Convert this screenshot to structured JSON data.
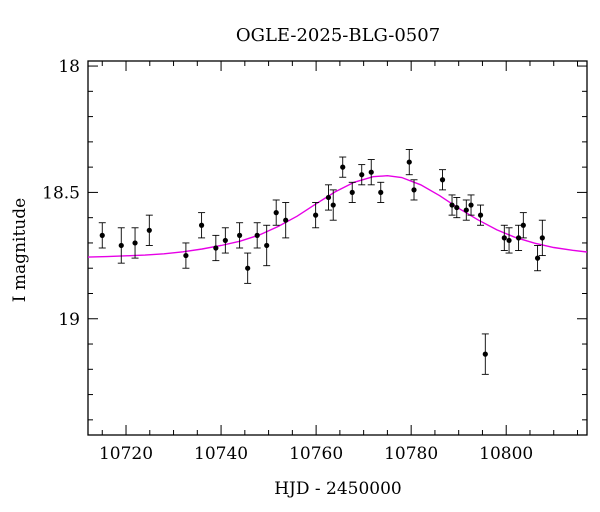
{
  "chart_data": {
    "type": "scatter",
    "title": "OGLE-2025-BLG-0507",
    "xlabel": "HJD - 2450000",
    "ylabel": "I magnitude",
    "xlim": [
      10712,
      10817
    ],
    "ylim": [
      19.46,
      17.98
    ],
    "y_inverted": true,
    "x_ticks": [
      10720,
      10740,
      10760,
      10780,
      10800
    ],
    "y_ticks": [
      18,
      18.5,
      19
    ],
    "y_tick_labels": [
      "18",
      "18.5",
      "19"
    ],
    "grid": false,
    "colors": {
      "points": "#000000",
      "model": "#e600e6",
      "axes": "#000000"
    },
    "series": [
      {
        "points": [
          {
            "x": 10715.0,
            "y": 18.67,
            "err": 0.05
          },
          {
            "x": 10719.0,
            "y": 18.71,
            "err": 0.07
          },
          {
            "x": 10721.9,
            "y": 18.7,
            "err": 0.06
          },
          {
            "x": 10724.9,
            "y": 18.65,
            "err": 0.06
          },
          {
            "x": 10732.6,
            "y": 18.75,
            "err": 0.05
          },
          {
            "x": 10735.9,
            "y": 18.63,
            "err": 0.05
          },
          {
            "x": 10738.9,
            "y": 18.72,
            "err": 0.05
          },
          {
            "x": 10740.9,
            "y": 18.69,
            "err": 0.05
          },
          {
            "x": 10743.9,
            "y": 18.67,
            "err": 0.05
          },
          {
            "x": 10745.6,
            "y": 18.8,
            "err": 0.06
          },
          {
            "x": 10747.6,
            "y": 18.67,
            "err": 0.05
          },
          {
            "x": 10749.6,
            "y": 18.71,
            "err": 0.08
          },
          {
            "x": 10751.6,
            "y": 18.58,
            "err": 0.05
          },
          {
            "x": 10753.6,
            "y": 18.61,
            "err": 0.07
          },
          {
            "x": 10759.9,
            "y": 18.59,
            "err": 0.05
          },
          {
            "x": 10762.6,
            "y": 18.52,
            "err": 0.05
          },
          {
            "x": 10763.6,
            "y": 18.55,
            "err": 0.06
          },
          {
            "x": 10765.6,
            "y": 18.4,
            "err": 0.04
          },
          {
            "x": 10767.6,
            "y": 18.5,
            "err": 0.04
          },
          {
            "x": 10769.6,
            "y": 18.43,
            "err": 0.04
          },
          {
            "x": 10771.6,
            "y": 18.42,
            "err": 0.05
          },
          {
            "x": 10773.6,
            "y": 18.5,
            "err": 0.04
          },
          {
            "x": 10779.6,
            "y": 18.38,
            "err": 0.05
          },
          {
            "x": 10780.6,
            "y": 18.49,
            "err": 0.04
          },
          {
            "x": 10786.6,
            "y": 18.45,
            "err": 0.04
          },
          {
            "x": 10788.6,
            "y": 18.55,
            "err": 0.04
          },
          {
            "x": 10789.6,
            "y": 18.56,
            "err": 0.04
          },
          {
            "x": 10791.6,
            "y": 18.57,
            "err": 0.04
          },
          {
            "x": 10792.6,
            "y": 18.55,
            "err": 0.04
          },
          {
            "x": 10794.6,
            "y": 18.59,
            "err": 0.04
          },
          {
            "x": 10795.6,
            "y": 19.14,
            "err": 0.08
          },
          {
            "x": 10799.6,
            "y": 18.68,
            "err": 0.05
          },
          {
            "x": 10800.6,
            "y": 18.69,
            "err": 0.05
          },
          {
            "x": 10802.6,
            "y": 18.68,
            "err": 0.05
          },
          {
            "x": 10803.6,
            "y": 18.63,
            "err": 0.05
          },
          {
            "x": 10806.6,
            "y": 18.76,
            "err": 0.05
          },
          {
            "x": 10807.6,
            "y": 18.68,
            "err": 0.07
          }
        ]
      },
      {
        "model": {
          "x": [
            10712,
            10716,
            10720,
            10724,
            10728,
            10732,
            10736,
            10740,
            10744,
            10748,
            10752,
            10756,
            10760,
            10764,
            10768,
            10772,
            10775,
            10778,
            10782,
            10786,
            10790,
            10794,
            10798,
            10802,
            10806,
            10810,
            10814,
            10817
          ],
          "y": [
            18.756,
            18.754,
            18.751,
            18.748,
            18.743,
            18.735,
            18.724,
            18.71,
            18.693,
            18.669,
            18.635,
            18.594,
            18.545,
            18.498,
            18.46,
            18.438,
            18.434,
            18.441,
            18.47,
            18.513,
            18.563,
            18.608,
            18.648,
            18.679,
            18.701,
            18.718,
            18.729,
            18.736
          ]
        }
      }
    ]
  }
}
